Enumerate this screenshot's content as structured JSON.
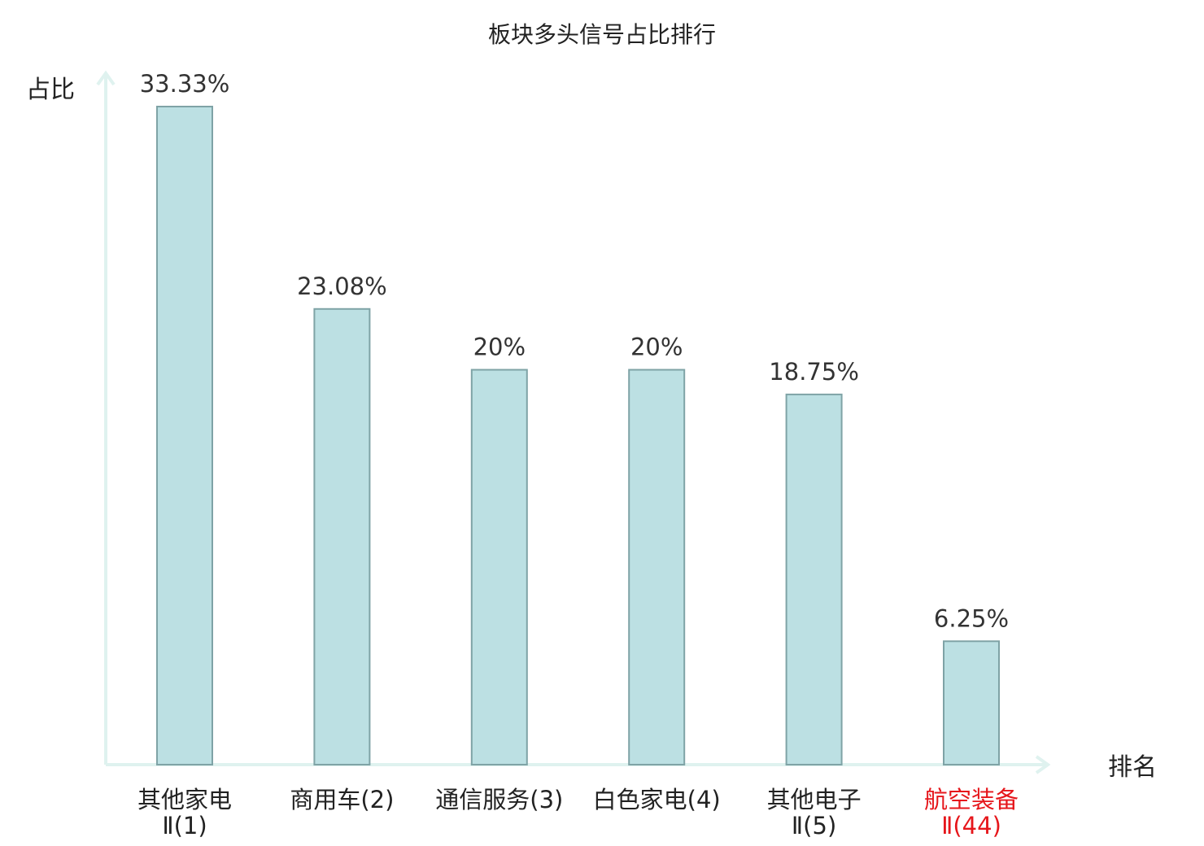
{
  "chart_data": {
    "type": "bar",
    "title": "板块多头信号占比排行",
    "ylabel": "占比",
    "xlabel": "排名",
    "categories": [
      [
        "其他家电",
        "Ⅱ(1)"
      ],
      [
        "商用车(2)"
      ],
      [
        "通信服务(3)"
      ],
      [
        "白色家电(4)"
      ],
      [
        "其他电子",
        "Ⅱ(5)"
      ],
      [
        "航空装备",
        "Ⅱ(44)"
      ]
    ],
    "values": [
      33.33,
      23.08,
      20,
      20,
      18.75,
      6.25
    ],
    "value_labels": [
      "33.33%",
      "23.08%",
      "20%",
      "20%",
      "18.75%",
      "6.25%"
    ],
    "highlight_index": 5,
    "ylim": [
      0,
      33.33
    ],
    "grid": false,
    "colors": {
      "bar_fill": "#bce0e3",
      "bar_stroke": "#7fa3a6",
      "axis": "#dff2ef",
      "highlight_text": "#e6161b",
      "text": "#222222"
    }
  }
}
